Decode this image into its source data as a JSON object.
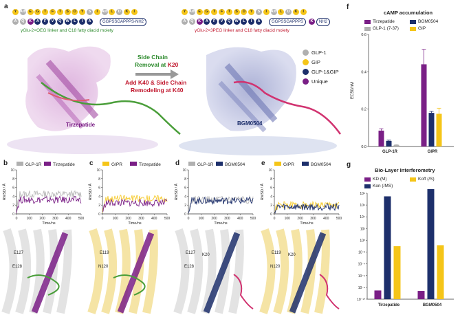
{
  "panel_a": {
    "label": "a",
    "left_seq_top": [
      "Y",
      "Aib",
      "E",
      "G",
      "T",
      "F",
      "T",
      "S",
      "D",
      "Y",
      "S",
      "I",
      "Aib",
      "L",
      "D",
      "K",
      "I"
    ],
    "left_seq_bot": [
      "A",
      "Q",
      "K",
      "A",
      "F",
      "V",
      "Q",
      "W",
      "L",
      "I",
      "A"
    ],
    "left_tail": "GGPSSGAPPPS-NH2",
    "left_linker": "γGlu-2×OEG linker and C18 fatty diacid moiety",
    "right_seq_top": [
      "Y",
      "Aib",
      "E",
      "G",
      "T",
      "F",
      "T",
      "S",
      "D",
      "Y",
      "S",
      "I",
      "Aib",
      "L",
      "D",
      "K",
      "I"
    ],
    "right_seq_bot": [
      "A",
      "Q",
      "K",
      "A",
      "F",
      "V",
      "Q",
      "W",
      "L",
      "I",
      "A"
    ],
    "right_tail": "GGPSSGAPPPS",
    "right_tail_k": "K",
    "right_tail_end": "NH2",
    "right_linker": "γGlu-2×3PEG linker and C18 fatty diacid moiety",
    "arrow1_a": "Side Chain",
    "arrow1_b": "Removal at",
    "arrow1_c": "K20",
    "arrow2_a": "Add K40 & Side Chain",
    "arrow2_b": "Remodeling at K40",
    "left_name": "Tirzepatide",
    "right_name": "BGM0504",
    "legend": [
      {
        "label": "GLP-1",
        "color": "#b0b0b0"
      },
      {
        "label": "GIP",
        "color": "#f5c518"
      },
      {
        "label": "GLP-1&GIP",
        "color": "#1d2f6b"
      },
      {
        "label": "Unique",
        "color": "#7a1f86"
      }
    ]
  },
  "panel_f": {
    "label": "f",
    "chart_data": {
      "type": "bar",
      "title": "cAMP accumulation",
      "ylabel": "EC50/nM",
      "categories": [
        "GLP-1R",
        "GIPR"
      ],
      "ylim": [
        0,
        0.6
      ],
      "yticks": [
        "0.0",
        "0.2",
        "0.4",
        "0.6"
      ],
      "series": [
        {
          "name": "Tirzepatide",
          "color": "#7a1f86",
          "values": [
            0.085,
            0.44
          ],
          "err": [
            0.01,
            0.08
          ]
        },
        {
          "name": "BGM0504",
          "color": "#1d2f6b",
          "values": [
            0.03,
            0.18
          ],
          "err": [
            0.004,
            0.008
          ]
        },
        {
          "name": "GLP-1 (7-37)",
          "color": "#b0b0b0",
          "values": [
            0.008,
            null
          ],
          "err": [
            0.002,
            null
          ]
        },
        {
          "name": "GIP",
          "color": "#f5c518",
          "values": [
            null,
            0.175
          ],
          "err": [
            null,
            0.03
          ]
        }
      ]
    }
  },
  "panel_g": {
    "label": "g",
    "chart_data": {
      "type": "bar",
      "title": "Bio-Layer Interferometry",
      "categories": [
        "Tirzepatide",
        "BGM0504"
      ],
      "log_scale": true,
      "ytick_labels": [
        "10⁻¹⁰",
        "10⁻⁸",
        "10⁻⁶",
        "10⁻⁴",
        "10⁻²",
        "10⁰",
        "10²",
        "10⁴",
        "10⁶",
        "10⁸"
      ],
      "series": [
        {
          "name": "KD (M)",
          "color": "#7a1f86",
          "values": [
            3e-09,
            2.5e-09
          ]
        },
        {
          "name": "Kon (/MS)",
          "color": "#1d2f6b",
          "values": [
            30000000.0,
            500000000.0
          ]
        },
        {
          "name": "Koff (/S)",
          "color": "#f5c518",
          "values": [
            0.1,
            0.15
          ]
        }
      ]
    }
  },
  "md_panels": [
    {
      "label": "b",
      "legend": [
        "GLP-1R",
        "Tirzepatide"
      ],
      "colors": [
        "#b0b0b0",
        "#7a1f86"
      ],
      "residues": [
        "E127",
        "E128"
      ]
    },
    {
      "label": "c",
      "legend": [
        "GIPR",
        "Tirzepatide"
      ],
      "colors": [
        "#f5c518",
        "#7a1f86"
      ],
      "residues": [
        "E119",
        "N120"
      ]
    },
    {
      "label": "d",
      "legend": [
        "GLP-1R",
        "BGM0504"
      ],
      "colors": [
        "#b0b0b0",
        "#1d2f6b"
      ],
      "residues": [
        "E127",
        "E128",
        "K20"
      ]
    },
    {
      "label": "e",
      "legend": [
        "GIPR",
        "BGM0504"
      ],
      "colors": [
        "#f5c518",
        "#1d2f6b"
      ],
      "residues": [
        "E119",
        "N120",
        "K20"
      ]
    }
  ],
  "md_axis": {
    "ylabel": "RMSD / Å",
    "xlabel": "Time/ns",
    "yticks": [
      "0",
      "2",
      "4",
      "6",
      "8",
      "10"
    ],
    "xticks": [
      "0",
      "100",
      "200",
      "300",
      "400",
      "500"
    ],
    "ymax": 10
  }
}
